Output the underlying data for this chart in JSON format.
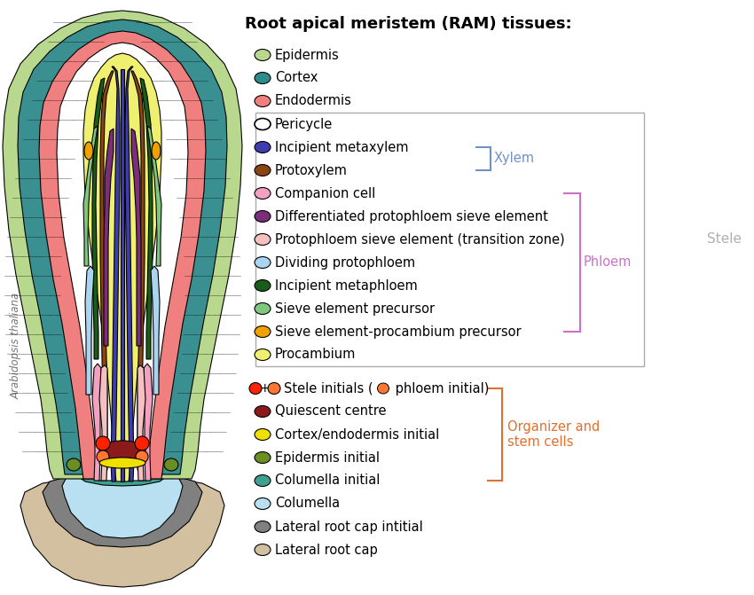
{
  "title": "Root apical meristem (RAM) tissues:",
  "arabidopsis_label": "Arabidopsis thaliana",
  "legend_items": [
    {
      "label": "Epidermis",
      "color": "#b8d98d",
      "shape": "ellipse"
    },
    {
      "label": "Cortex",
      "color": "#2e8b8b",
      "shape": "ellipse"
    },
    {
      "label": "Endodermis",
      "color": "#f08080",
      "shape": "ellipse"
    },
    {
      "label": "Pericycle",
      "color": "#ffffff",
      "shape": "ellipse_outline"
    },
    {
      "label": "Incipient metaxylem",
      "color": "#3d3db0",
      "shape": "ellipse"
    },
    {
      "label": "Protoxylem",
      "color": "#8b4513",
      "shape": "ellipse"
    },
    {
      "label": "Companion cell",
      "color": "#f4a0c0",
      "shape": "ellipse"
    },
    {
      "label": "Differentiated protophloem sieve element",
      "color": "#7b2f7b",
      "shape": "ellipse"
    },
    {
      "label": "Protophloem sieve element (transition zone)",
      "color": "#f5c0c0",
      "shape": "ellipse"
    },
    {
      "label": "Dividing protophloem",
      "color": "#aad4f0",
      "shape": "ellipse"
    },
    {
      "label": "Incipient metaphloem",
      "color": "#1a5c1a",
      "shape": "ellipse"
    },
    {
      "label": "Sieve element precursor",
      "color": "#7dc87d",
      "shape": "ellipse"
    },
    {
      "label": "Sieve element-procambium precursor",
      "color": "#f0a000",
      "shape": "ellipse"
    },
    {
      "label": "Procambium",
      "color": "#f0f070",
      "shape": "ellipse"
    },
    {
      "label": "Stele initials",
      "color": "#ff2200",
      "color2": "#ff7733",
      "shape": "double_ellipse"
    },
    {
      "label": "Quiescent centre",
      "color": "#8b1a1a",
      "shape": "ellipse"
    },
    {
      "label": "Cortex/endodermis initial",
      "color": "#f0e000",
      "shape": "ellipse"
    },
    {
      "label": "Epidermis initial",
      "color": "#6b8e23",
      "shape": "ellipse"
    },
    {
      "label": "Columella initial",
      "color": "#40a090",
      "shape": "ellipse"
    },
    {
      "label": "Columella",
      "color": "#b8e0f0",
      "shape": "ellipse"
    },
    {
      "label": "Lateral root cap intitial",
      "color": "#808080",
      "shape": "ellipse"
    },
    {
      "label": "Lateral root cap",
      "color": "#d2c0a0",
      "shape": "ellipse"
    }
  ],
  "xylem_color": "#7090cc",
  "phloem_color": "#cc70cc",
  "stele_label": "Stele",
  "stele_color": "#b0b0b0",
  "organizer_label": "Organizer and\nstem cells",
  "organizer_color": "#e07030",
  "background_color": "#ffffff",
  "title_fontsize": 13,
  "label_fontsize": 10.5,
  "fig_width": 8.5,
  "fig_height": 6.71,
  "dpi": 100
}
